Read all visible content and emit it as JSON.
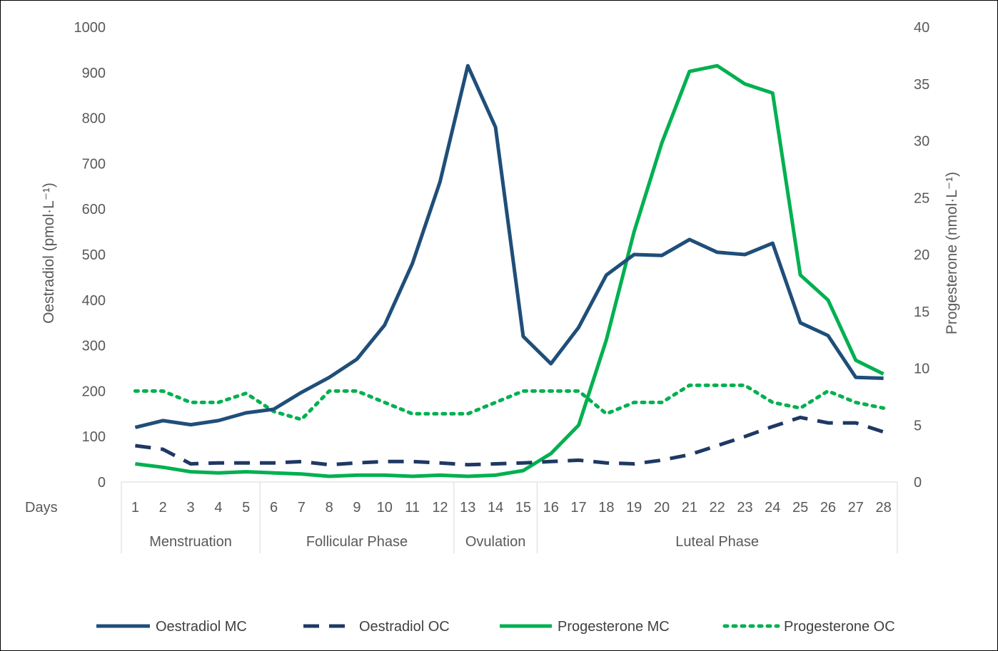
{
  "chart_data": {
    "type": "line",
    "x_axis_title": "Days",
    "x": [
      1,
      2,
      3,
      4,
      5,
      6,
      7,
      8,
      9,
      10,
      11,
      12,
      13,
      14,
      15,
      16,
      17,
      18,
      19,
      20,
      21,
      22,
      23,
      24,
      25,
      26,
      27,
      28
    ],
    "x_tick_labels": [
      "1",
      "2",
      "3",
      "4",
      "5",
      "6",
      "7",
      "8",
      "9",
      "10",
      "11",
      "12",
      "13",
      "14",
      "15",
      "16",
      "17",
      "18",
      "19",
      "20",
      "21",
      "22",
      "23",
      "24",
      "25",
      "26",
      "27",
      "28"
    ],
    "phases": [
      {
        "label": "Menstruation",
        "start_day": 1,
        "end_day": 5
      },
      {
        "label": "Follicular Phase",
        "start_day": 6,
        "end_day": 12
      },
      {
        "label": "Ovulation",
        "start_day": 13,
        "end_day": 15
      },
      {
        "label": "Luteal Phase",
        "start_day": 16,
        "end_day": 28
      }
    ],
    "y_left": {
      "label": "Oestradiol (pmol·L⁻¹)",
      "ylim": [
        0,
        1000
      ],
      "ticks": [
        0,
        100,
        200,
        300,
        400,
        500,
        600,
        700,
        800,
        900,
        1000
      ]
    },
    "y_right": {
      "label": "Progesterone (nmol·L⁻¹)",
      "ylim": [
        0,
        40
      ],
      "ticks": [
        0,
        5,
        10,
        15,
        20,
        25,
        30,
        35,
        40
      ]
    },
    "series": [
      {
        "name": "Oestradiol MC",
        "axis": "left",
        "color": "#1f4e79",
        "style": "solid",
        "values": [
          120,
          135,
          126,
          135,
          152,
          160,
          197,
          230,
          270,
          345,
          480,
          660,
          915,
          780,
          320,
          260,
          340,
          455,
          500,
          498,
          533,
          505,
          500,
          525,
          350,
          322,
          230,
          228
        ]
      },
      {
        "name": "Oestradiol OC",
        "axis": "left",
        "color": "#1f3864",
        "style": "dashed",
        "values": [
          80,
          72,
          40,
          42,
          42,
          42,
          45,
          38,
          42,
          45,
          45,
          42,
          38,
          40,
          42,
          45,
          48,
          42,
          40,
          48,
          60,
          80,
          100,
          122,
          142,
          130,
          130,
          110
        ]
      },
      {
        "name": "Progesterone MC",
        "axis": "right",
        "color": "#00b050",
        "style": "solid",
        "values": [
          1.6,
          1.3,
          0.9,
          0.8,
          0.9,
          0.8,
          0.7,
          0.5,
          0.6,
          0.6,
          0.5,
          0.6,
          0.5,
          0.6,
          1.0,
          2.5,
          5.0,
          12.5,
          22.0,
          29.8,
          36.1,
          36.6,
          35.0,
          34.2,
          18.2,
          16.0,
          10.7,
          9.5
        ]
      },
      {
        "name": "Progesterone OC",
        "axis": "right",
        "color": "#00b050",
        "style": "dotted",
        "values": [
          8.0,
          8.0,
          7.0,
          7.0,
          7.8,
          6.2,
          5.5,
          8.0,
          8.0,
          7.0,
          6.0,
          6.0,
          6.0,
          7.0,
          8.0,
          8.0,
          8.0,
          6.0,
          7.0,
          7.0,
          8.5,
          8.5,
          8.5,
          7.0,
          6.5,
          8.0,
          7.0,
          6.5
        ]
      }
    ],
    "grid": false,
    "legend_position": "bottom"
  }
}
